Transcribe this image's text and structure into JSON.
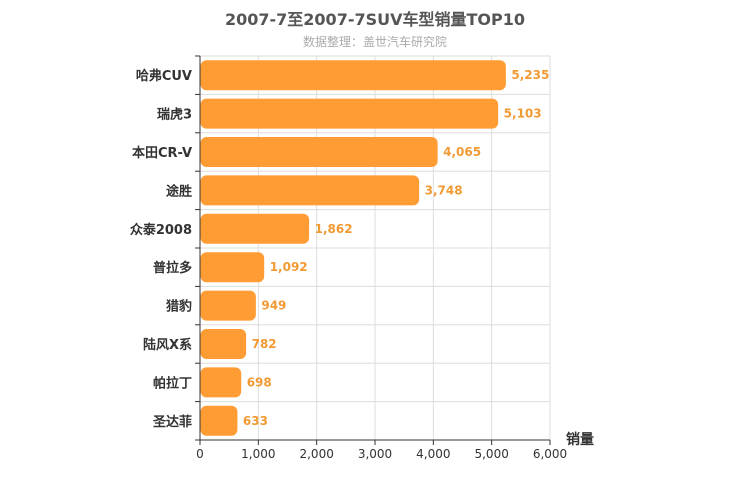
{
  "chart_data": {
    "type": "bar",
    "orientation": "horizontal",
    "title": "2007-7至2007-7SUV车型销量TOP10",
    "subtitle": "数据整理：盖世汽车研究院",
    "xlabel": "销量",
    "categories": [
      "哈弗CUV",
      "瑞虎3",
      "本田CR-V",
      "途胜",
      "众泰2008",
      "普拉多",
      "猎豹",
      "陆风X系",
      "帕拉丁",
      "圣达菲"
    ],
    "values": [
      5235,
      5103,
      4065,
      3748,
      1862,
      1092,
      949,
      782,
      698,
      633
    ],
    "value_labels": [
      "5,235",
      "5,103",
      "4,065",
      "3,748",
      "1,862",
      "1,092",
      "949",
      "782",
      "698",
      "633"
    ],
    "xlim": [
      0,
      6000
    ],
    "xticks": [
      0,
      1000,
      2000,
      3000,
      4000,
      5000,
      6000
    ],
    "xtick_labels": [
      "0",
      "1,000",
      "2,000",
      "3,000",
      "4,000",
      "5,000",
      "6,000"
    ],
    "grid": true,
    "legend": "none",
    "colors": {
      "bar": "#FF9C33",
      "label": "#F29A34",
      "axis": "#333333",
      "grid": "#dddddd"
    }
  }
}
